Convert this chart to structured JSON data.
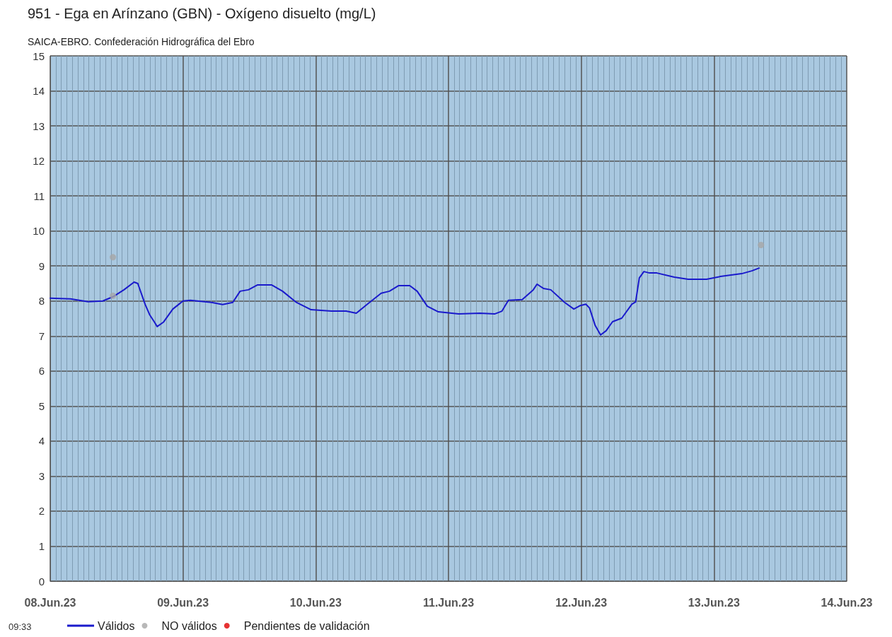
{
  "chart_data": {
    "type": "line",
    "title": "951 - Ega en Arínzano (GBN) - Oxígeno disuelto (mg/L)",
    "subtitle": "SAICA-EBRO. Confederación Hidrográfica del Ebro",
    "annotations": [
      "09:33"
    ],
    "xlim": [
      "--06-08",
      "--06-14"
    ],
    "xticks": [
      {
        "value": "--06-08",
        "label": "08.Jun.23"
      },
      {
        "value": "--06-08T01:00",
        "label": null
      },
      {
        "value": "--06-08T02:00",
        "label": null
      },
      {
        "value": "--06-08T03:00",
        "label": null
      },
      {
        "value": "--06-08T04:00",
        "label": null
      },
      {
        "value": "--06-08T05:00",
        "label": null
      },
      {
        "value": "--06-08T06:00",
        "label": null
      },
      {
        "value": "--06-08T07:00",
        "label": null
      },
      {
        "value": "--06-08T08:00",
        "label": null
      },
      {
        "value": "--06-08T09:00",
        "label": null
      },
      {
        "value": "--06-08T10:00",
        "label": null
      },
      {
        "value": "--06-08T11:00",
        "label": null
      },
      {
        "value": "--06-08T12:00",
        "label": null
      },
      {
        "value": "--06-08T13:00",
        "label": null
      },
      {
        "value": "--06-08T14:00",
        "label": null
      },
      {
        "value": "--06-08T15:00",
        "label": null
      },
      {
        "value": "--06-08T16:00",
        "label": null
      },
      {
        "value": "--06-08T17:00",
        "label": null
      },
      {
        "value": "--06-08T18:00",
        "label": null
      },
      {
        "value": "--06-08T19:00",
        "label": null
      },
      {
        "value": "--06-08T20:00",
        "label": null
      },
      {
        "value": "--06-08T21:00",
        "label": null
      },
      {
        "value": "--06-08T22:00",
        "label": null
      },
      {
        "value": "--06-08T23:00",
        "label": null
      },
      {
        "value": "--06-09",
        "label": "09.Jun.23"
      },
      {
        "value": "--06-09T01:00",
        "label": null
      },
      {
        "value": "--06-09T02:00",
        "label": null
      },
      {
        "value": "--06-09T03:00",
        "label": null
      },
      {
        "value": "--06-09T04:00",
        "label": null
      },
      {
        "value": "--06-09T05:00",
        "label": null
      },
      {
        "value": "--06-09T06:00",
        "label": null
      },
      {
        "value": "--06-09T07:00",
        "label": null
      },
      {
        "value": "--06-09T08:00",
        "label": null
      },
      {
        "value": "--06-09T09:00",
        "label": null
      },
      {
        "value": "--06-09T10:00",
        "label": null
      },
      {
        "value": "--06-09T11:00",
        "label": null
      },
      {
        "value": "--06-09T12:00",
        "label": null
      },
      {
        "value": "--06-09T13:00",
        "label": null
      },
      {
        "value": "--06-09T14:00",
        "label": null
      },
      {
        "value": "--06-09T15:00",
        "label": null
      },
      {
        "value": "--06-09T16:00",
        "label": null
      },
      {
        "value": "--06-09T17:00",
        "label": null
      },
      {
        "value": "--06-09T18:00",
        "label": null
      },
      {
        "value": "--06-09T19:00",
        "label": null
      },
      {
        "value": "--06-09T20:00",
        "label": null
      },
      {
        "value": "--06-09T21:00",
        "label": null
      },
      {
        "value": "--06-09T22:00",
        "label": null
      },
      {
        "value": "--06-09T23:00",
        "label": null
      },
      {
        "value": "--06-10",
        "label": "10.Jun.23"
      },
      {
        "value": "--06-10T01:00",
        "label": null
      },
      {
        "value": "--06-10T02:00",
        "label": null
      },
      {
        "value": "--06-10T03:00",
        "label": null
      },
      {
        "value": "--06-10T04:00",
        "label": null
      },
      {
        "value": "--06-10T05:00",
        "label": null
      },
      {
        "value": "--06-10T06:00",
        "label": null
      },
      {
        "value": "--06-10T07:00",
        "label": null
      },
      {
        "value": "--06-10T08:00",
        "label": null
      },
      {
        "value": "--06-10T09:00",
        "label": null
      },
      {
        "value": "--06-10T10:00",
        "label": null
      },
      {
        "value": "--06-10T11:00",
        "label": null
      },
      {
        "value": "--06-10T12:00",
        "label": null
      },
      {
        "value": "--06-10T13:00",
        "label": null
      },
      {
        "value": "--06-10T14:00",
        "label": null
      },
      {
        "value": "--06-10T15:00",
        "label": null
      },
      {
        "value": "--06-10T16:00",
        "label": null
      },
      {
        "value": "--06-10T17:00",
        "label": null
      },
      {
        "value": "--06-10T18:00",
        "label": null
      },
      {
        "value": "--06-10T19:00",
        "label": null
      },
      {
        "value": "--06-10T20:00",
        "label": null
      },
      {
        "value": "--06-10T21:00",
        "label": null
      },
      {
        "value": "--06-10T22:00",
        "label": null
      },
      {
        "value": "--06-10T23:00",
        "label": null
      },
      {
        "value": "--06-11",
        "label": "11.Jun.23"
      },
      {
        "value": "--06-11T01:00",
        "label": null
      },
      {
        "value": "--06-11T02:00",
        "label": null
      },
      {
        "value": "--06-11T03:00",
        "label": null
      },
      {
        "value": "--06-11T04:00",
        "label": null
      },
      {
        "value": "--06-11T05:00",
        "label": null
      },
      {
        "value": "--06-11T06:00",
        "label": null
      },
      {
        "value": "--06-11T07:00",
        "label": null
      },
      {
        "value": "--06-11T08:00",
        "label": null
      },
      {
        "value": "--06-11T09:00",
        "label": null
      },
      {
        "value": "--06-11T10:00",
        "label": null
      },
      {
        "value": "--06-11T11:00",
        "label": null
      },
      {
        "value": "--06-11T12:00",
        "label": null
      },
      {
        "value": "--06-11T13:00",
        "label": null
      },
      {
        "value": "--06-11T14:00",
        "label": null
      },
      {
        "value": "--06-11T15:00",
        "label": null
      },
      {
        "value": "--06-11T16:00",
        "label": null
      },
      {
        "value": "--06-11T17:00",
        "label": null
      },
      {
        "value": "--06-11T18:00",
        "label": null
      },
      {
        "value": "--06-11T19:00",
        "label": null
      },
      {
        "value": "--06-11T20:00",
        "label": null
      },
      {
        "value": "--06-11T21:00",
        "label": null
      },
      {
        "value": "--06-11T22:00",
        "label": null
      },
      {
        "value": "--06-11T23:00",
        "label": null
      },
      {
        "value": "--06-12",
        "label": "12.Jun.23"
      },
      {
        "value": "--06-12T01:00",
        "label": null
      },
      {
        "value": "--06-12T02:00",
        "label": null
      },
      {
        "value": "--06-12T03:00",
        "label": null
      },
      {
        "value": "--06-12T04:00",
        "label": null
      },
      {
        "value": "--06-12T05:00",
        "label": null
      },
      {
        "value": "--06-12T06:00",
        "label": null
      },
      {
        "value": "--06-12T07:00",
        "label": null
      },
      {
        "value": "--06-12T08:00",
        "label": null
      },
      {
        "value": "--06-12T09:00",
        "label": null
      },
      {
        "value": "--06-12T10:00",
        "label": null
      },
      {
        "value": "--06-12T11:00",
        "label": null
      },
      {
        "value": "--06-12T12:00",
        "label": null
      },
      {
        "value": "--06-12T13:00",
        "label": null
      },
      {
        "value": "--06-12T14:00",
        "label": null
      },
      {
        "value": "--06-12T15:00",
        "label": null
      },
      {
        "value": "--06-12T16:00",
        "label": null
      },
      {
        "value": "--06-12T17:00",
        "label": null
      },
      {
        "value": "--06-12T18:00",
        "label": null
      },
      {
        "value": "--06-12T19:00",
        "label": null
      },
      {
        "value": "--06-12T20:00",
        "label": null
      },
      {
        "value": "--06-12T21:00",
        "label": null
      },
      {
        "value": "--06-12T22:00",
        "label": null
      },
      {
        "value": "--06-12T23:00",
        "label": null
      },
      {
        "value": "--06-13",
        "label": "13.Jun.23"
      },
      {
        "value": "--06-13T01:00",
        "label": null
      },
      {
        "value": "--06-13T02:00",
        "label": null
      },
      {
        "value": "--06-13T03:00",
        "label": null
      },
      {
        "value": "--06-13T04:00",
        "label": null
      },
      {
        "value": "--06-13T05:00",
        "label": null
      },
      {
        "value": "--06-13T06:00",
        "label": null
      },
      {
        "value": "--06-13T07:00",
        "label": null
      },
      {
        "value": "--06-13T08:00",
        "label": null
      },
      {
        "value": "--06-13T09:00",
        "label": null
      },
      {
        "value": "--06-13T10:00",
        "label": null
      },
      {
        "value": "--06-13T11:00",
        "label": null
      },
      {
        "value": "--06-13T12:00",
        "label": null
      },
      {
        "value": "--06-13T13:00",
        "label": null
      },
      {
        "value": "--06-13T14:00",
        "label": null
      },
      {
        "value": "--06-13T15:00",
        "label": null
      },
      {
        "value": "--06-13T16:00",
        "label": null
      },
      {
        "value": "--06-13T17:00",
        "label": null
      },
      {
        "value": "--06-13T18:00",
        "label": null
      },
      {
        "value": "--06-13T19:00",
        "label": null
      },
      {
        "value": "--06-13T20:00",
        "label": null
      },
      {
        "value": "--06-13T21:00",
        "label": null
      },
      {
        "value": "--06-13T22:00",
        "label": null
      },
      {
        "value": "--06-13T23:00",
        "label": null
      },
      {
        "value": "--06-14",
        "label": "14.Jun.23"
      }
    ],
    "ylim": [
      0,
      15
    ],
    "yticks": [
      0,
      1,
      2,
      3,
      4,
      5,
      6,
      7,
      8,
      9,
      10,
      11,
      12,
      13,
      14,
      15
    ],
    "grid": true,
    "legend": "bottom left",
    "series": [
      {
        "name": "Válidos",
        "color": "#1a1acc",
        "marker": "none",
        "line_style": "solid",
        "x": [
          "--06-08T00:00",
          "--06-08T03:40",
          "--06-08T06:50",
          "--06-08T09:30",
          "--06-08T11:20",
          "--06-08T13:20",
          "--06-08T15:10",
          "--06-08T15:50",
          "--06-08T17:10",
          "--06-08T18:00",
          "--06-08T18:50",
          "--06-08T19:20",
          "--06-08T20:30",
          "--06-08T22:10",
          "--06-09T00:00",
          "--06-09T01:20",
          "--06-09T05:10",
          "--06-09T07:10",
          "--06-09T09:00",
          "--06-09T10:20",
          "--06-09T11:50",
          "--06-09T13:30",
          "--06-09T16:00",
          "--06-09T18:00",
          "--06-09T20:30",
          "--06-09T23:10",
          "--06-10T02:50",
          "--06-10T05:30",
          "--06-10T07:20",
          "--06-10T09:20",
          "--06-10T11:50",
          "--06-10T13:20",
          "--06-10T15:00",
          "--06-10T17:00",
          "--06-10T18:20",
          "--06-10T20:10",
          "--06-10T22:10",
          "--06-11T01:50",
          "--06-11T05:40",
          "--06-11T08:20",
          "--06-11T09:40",
          "--06-11T10:50",
          "--06-11T13:20",
          "--06-11T15:20",
          "--06-11T16:00",
          "--06-11T17:10",
          "--06-11T18:30",
          "--06-11T21:00",
          "--06-11T22:40",
          "--06-11T23:50",
          "--06-12T00:50",
          "--06-12T01:30",
          "--06-12T02:30",
          "--06-12T03:30",
          "--06-12T04:30",
          "--06-12T05:40",
          "--06-12T07:20",
          "--06-12T09:10",
          "--06-12T09:50",
          "--06-12T10:30",
          "--06-12T11:20",
          "--06-12T12:20",
          "--06-12T13:40",
          "--06-12T16:50",
          "--06-12T19:20",
          "--06-12T22:40",
          "--06-13T01:10",
          "--06-13T05:00",
          "--06-13T06:50",
          "--06-13T08:10"
        ],
        "values": [
          8.08,
          8.06,
          7.98,
          8.0,
          8.12,
          8.32,
          8.54,
          8.5,
          7.9,
          7.6,
          7.4,
          7.27,
          7.4,
          7.77,
          8.0,
          8.02,
          7.96,
          7.9,
          7.96,
          8.28,
          8.32,
          8.46,
          8.46,
          8.28,
          7.96,
          7.75,
          7.71,
          7.71,
          7.65,
          7.91,
          8.22,
          8.28,
          8.44,
          8.44,
          8.28,
          7.85,
          7.69,
          7.63,
          7.65,
          7.63,
          7.71,
          8.02,
          8.04,
          8.32,
          8.48,
          8.36,
          8.32,
          7.96,
          7.77,
          7.87,
          7.91,
          7.8,
          7.31,
          7.03,
          7.15,
          7.41,
          7.51,
          7.91,
          7.97,
          8.66,
          8.84,
          8.8,
          8.8,
          8.68,
          8.62,
          8.62,
          8.7,
          8.78,
          8.86,
          8.94
        ]
      },
      {
        "name": "NO válidos",
        "type": "scatter",
        "color": "#a6a6a6",
        "marker": "circle",
        "x": [
          "--06-08T11:20",
          "--06-08T11:20",
          "--06-13T08:30"
        ],
        "values": [
          9.25,
          8.15,
          9.6
        ]
      },
      {
        "name": "Pendientes de validación",
        "type": "scatter",
        "color": "#e00000",
        "marker": "circle"
      }
    ]
  }
}
